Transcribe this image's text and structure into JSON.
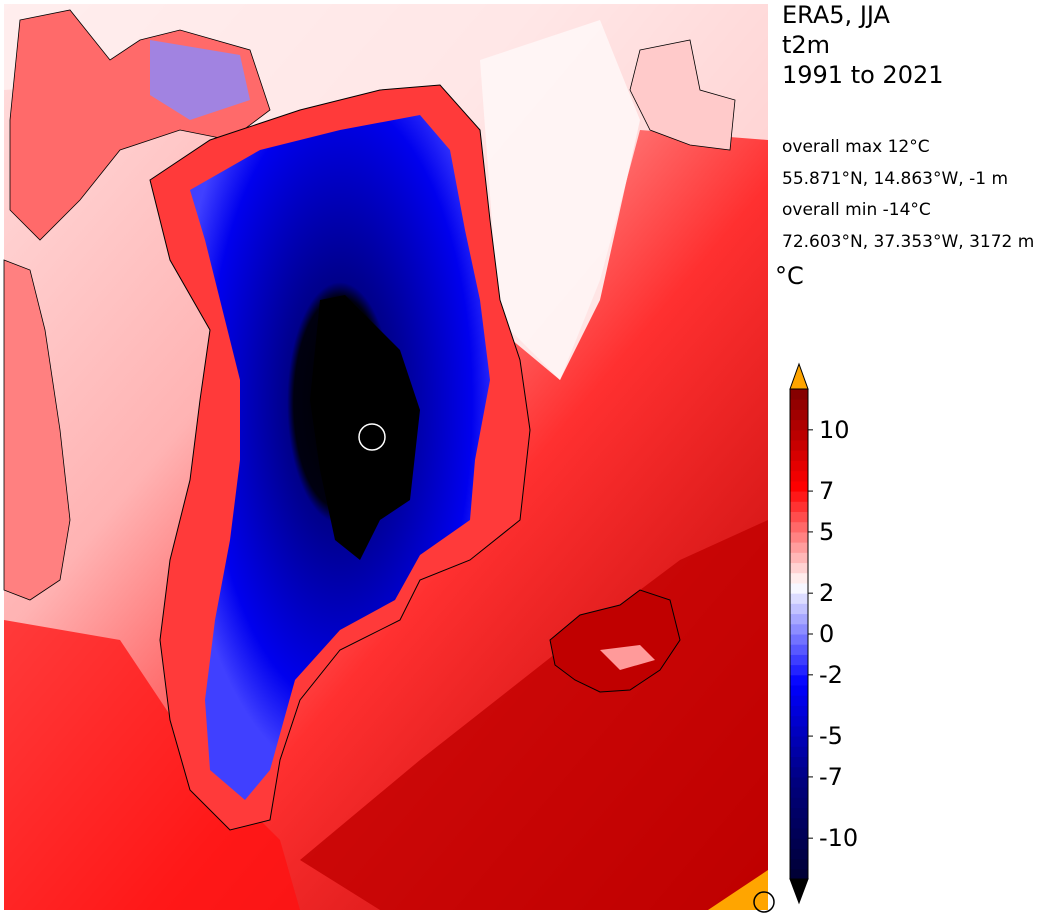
{
  "title": {
    "line1": "ERA5, JJA",
    "line2": "t2m",
    "line3": "1991 to 2021"
  },
  "stats": {
    "max_label": "overall max 12°C",
    "max_location": "55.871°N, 14.863°W, -1 m",
    "min_label": "overall min -14°C",
    "min_location": "72.603°N, 37.353°W, 3172 m"
  },
  "colorbar": {
    "unit": "°C",
    "tick_labels": [
      "10",
      "7",
      "5",
      "2",
      "0",
      "-2",
      "-5",
      "-7",
      "-10"
    ],
    "tick_values": [
      10,
      7,
      5,
      2,
      0,
      -2,
      -5,
      -7,
      -10
    ],
    "range": [
      -12,
      12
    ],
    "extend": "both",
    "over_color": "#ffa500",
    "under_color": "#000000",
    "colors": [
      "#000033",
      "#00007f",
      "#0000ff",
      "#ffffff",
      "#ff0000",
      "#7f0000"
    ]
  },
  "map": {
    "land_labels": []
  }
}
